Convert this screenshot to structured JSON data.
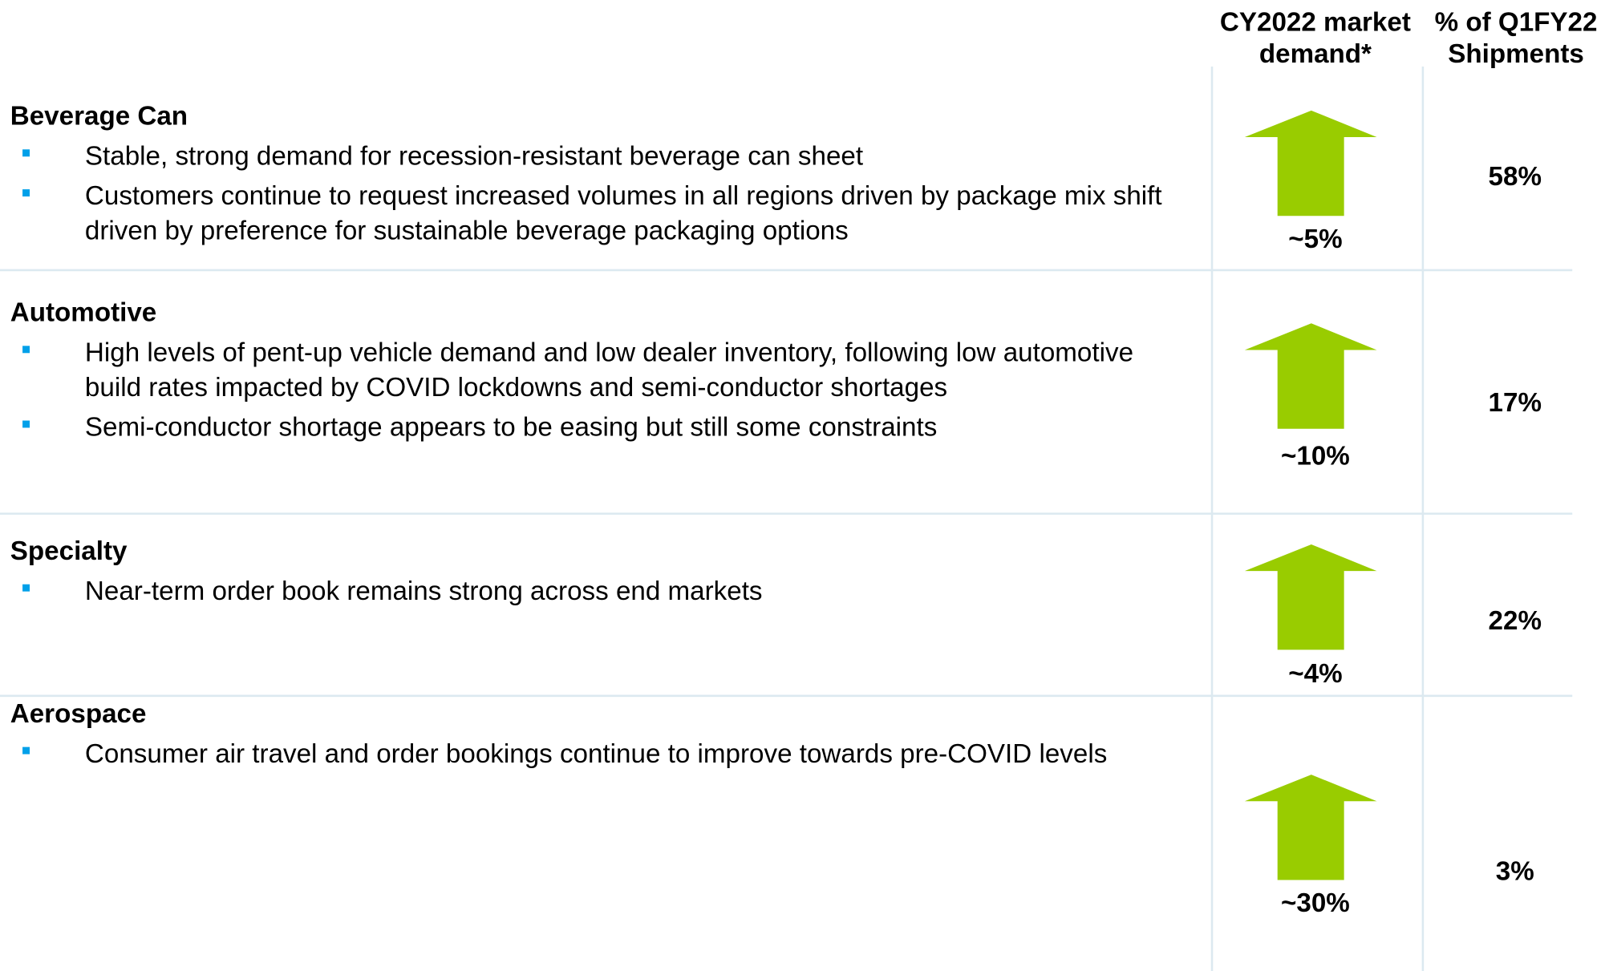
{
  "columns": [
    "CY2022 market demand*",
    "% of Q1FY22 Shipments"
  ],
  "rows": [
    {
      "title": "Beverage Can",
      "bullets": [
        "Stable, strong demand for recession-resistant beverage can sheet",
        "Customers continue to request increased volumes in all regions driven by package mix shift driven by preference for sustainable beverage packaging options"
      ],
      "demand": "~5%",
      "share": "58%"
    },
    {
      "title": "Automotive",
      "bullets": [
        "High levels of pent-up vehicle demand and low dealer inventory, following low automotive build rates impacted by COVID lockdowns and semi-conductor shortages",
        "Semi-conductor shortage appears to be easing but still some constraints"
      ],
      "demand": "~10%",
      "share": "17%"
    },
    {
      "title": "Specialty",
      "bullets": [
        "Near-term order book remains strong across end markets"
      ],
      "demand": "~4%",
      "share": "22%"
    },
    {
      "title": "Aerospace",
      "bullets": [
        "Consumer air travel and order bookings continue to improve towards pre-COVID levels"
      ],
      "demand": "~30%",
      "share": "3%"
    }
  ]
}
